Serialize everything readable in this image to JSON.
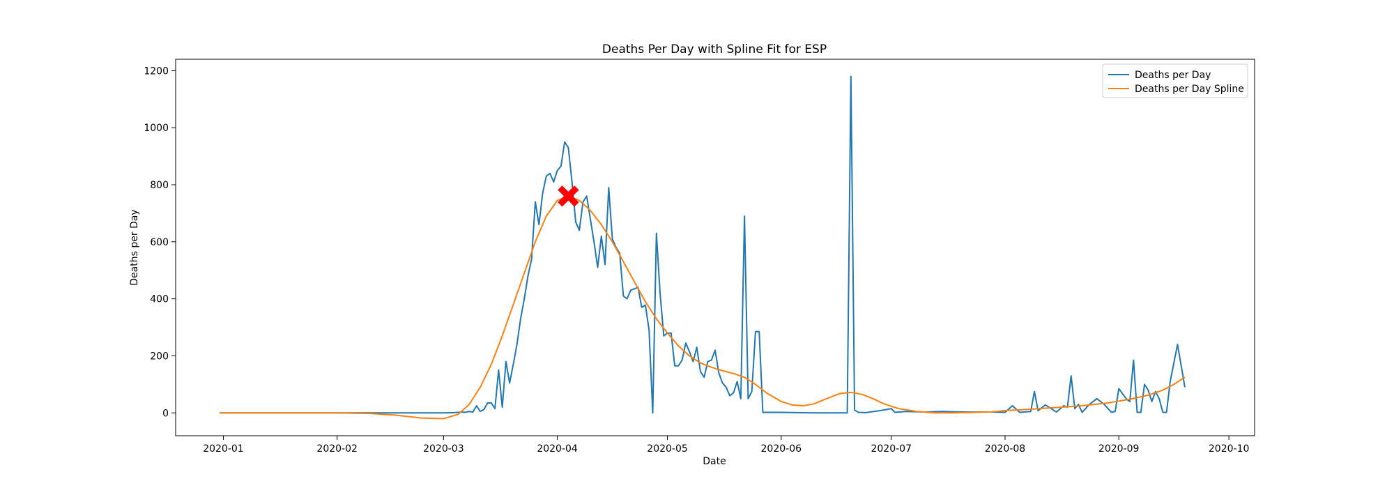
{
  "chart_data": {
    "type": "line",
    "title": "Deaths Per Day with Spline Fit for ESP",
    "xlabel": "Date",
    "ylabel": "Deaths per Day",
    "xlim": [
      "2019-12-19",
      "2020-10-08"
    ],
    "ylim": [
      -80,
      1240
    ],
    "x_ticks": [
      "2020-01-01",
      "2020-02-01",
      "2020-03-01",
      "2020-04-01",
      "2020-05-01",
      "2020-06-01",
      "2020-07-01",
      "2020-08-01",
      "2020-09-01",
      "2020-10-01"
    ],
    "x_tick_labels": [
      "2020-01",
      "2020-02",
      "2020-03",
      "2020-04",
      "2020-05",
      "2020-06",
      "2020-07",
      "2020-08",
      "2020-09",
      "2020-10"
    ],
    "y_ticks": [
      0,
      200,
      400,
      600,
      800,
      1000,
      1200
    ],
    "y_tick_labels": [
      "0",
      "200",
      "400",
      "600",
      "800",
      "1000",
      "1200"
    ],
    "grid": false,
    "legend_position": "top-right",
    "series": [
      {
        "name": "Deaths per Day",
        "color": "#1f77b4",
        "points": [
          [
            "2019-12-31",
            0
          ],
          [
            "2020-01-15",
            0
          ],
          [
            "2020-02-01",
            0
          ],
          [
            "2020-02-15",
            0
          ],
          [
            "2020-03-01",
            0
          ],
          [
            "2020-03-04",
            1
          ],
          [
            "2020-03-05",
            2
          ],
          [
            "2020-03-06",
            3
          ],
          [
            "2020-03-07",
            2
          ],
          [
            "2020-03-08",
            5
          ],
          [
            "2020-03-09",
            3
          ],
          [
            "2020-03-10",
            25
          ],
          [
            "2020-03-11",
            5
          ],
          [
            "2020-03-12",
            12
          ],
          [
            "2020-03-13",
            35
          ],
          [
            "2020-03-14",
            35
          ],
          [
            "2020-03-15",
            15
          ],
          [
            "2020-03-16",
            150
          ],
          [
            "2020-03-17",
            20
          ],
          [
            "2020-03-18",
            180
          ],
          [
            "2020-03-19",
            105
          ],
          [
            "2020-03-20",
            170
          ],
          [
            "2020-03-21",
            240
          ],
          [
            "2020-03-22",
            330
          ],
          [
            "2020-03-23",
            400
          ],
          [
            "2020-03-24",
            480
          ],
          [
            "2020-03-25",
            540
          ],
          [
            "2020-03-26",
            740
          ],
          [
            "2020-03-27",
            660
          ],
          [
            "2020-03-28",
            770
          ],
          [
            "2020-03-29",
            830
          ],
          [
            "2020-03-30",
            840
          ],
          [
            "2020-03-31",
            810
          ],
          [
            "2020-04-01",
            850
          ],
          [
            "2020-04-02",
            865
          ],
          [
            "2020-04-03",
            950
          ],
          [
            "2020-04-04",
            930
          ],
          [
            "2020-04-05",
            810
          ],
          [
            "2020-04-06",
            670
          ],
          [
            "2020-04-07",
            640
          ],
          [
            "2020-04-08",
            740
          ],
          [
            "2020-04-09",
            760
          ],
          [
            "2020-04-10",
            680
          ],
          [
            "2020-04-11",
            600
          ],
          [
            "2020-04-12",
            510
          ],
          [
            "2020-04-13",
            620
          ],
          [
            "2020-04-14",
            520
          ],
          [
            "2020-04-15",
            790
          ],
          [
            "2020-04-16",
            610
          ],
          [
            "2020-04-17",
            580
          ],
          [
            "2020-04-18",
            560
          ],
          [
            "2020-04-19",
            410
          ],
          [
            "2020-04-20",
            400
          ],
          [
            "2020-04-21",
            430
          ],
          [
            "2020-04-22",
            435
          ],
          [
            "2020-04-23",
            440
          ],
          [
            "2020-04-24",
            370
          ],
          [
            "2020-04-25",
            378
          ],
          [
            "2020-04-26",
            290
          ],
          [
            "2020-04-27",
            0
          ],
          [
            "2020-04-28",
            630
          ],
          [
            "2020-04-29",
            420
          ],
          [
            "2020-04-30",
            270
          ],
          [
            "2020-05-01",
            280
          ],
          [
            "2020-05-02",
            280
          ],
          [
            "2020-05-03",
            165
          ],
          [
            "2020-05-04",
            165
          ],
          [
            "2020-05-05",
            185
          ],
          [
            "2020-05-06",
            245
          ],
          [
            "2020-05-07",
            215
          ],
          [
            "2020-05-08",
            180
          ],
          [
            "2020-05-09",
            230
          ],
          [
            "2020-05-10",
            145
          ],
          [
            "2020-05-11",
            125
          ],
          [
            "2020-05-12",
            180
          ],
          [
            "2020-05-13",
            185
          ],
          [
            "2020-05-14",
            220
          ],
          [
            "2020-05-15",
            140
          ],
          [
            "2020-05-16",
            105
          ],
          [
            "2020-05-17",
            90
          ],
          [
            "2020-05-18",
            60
          ],
          [
            "2020-05-19",
            70
          ],
          [
            "2020-05-20",
            110
          ],
          [
            "2020-05-21",
            50
          ],
          [
            "2020-05-22",
            690
          ],
          [
            "2020-05-23",
            50
          ],
          [
            "2020-05-24",
            75
          ],
          [
            "2020-05-25",
            285
          ],
          [
            "2020-05-26",
            285
          ],
          [
            "2020-05-27",
            2
          ],
          [
            "2020-06-01",
            2
          ],
          [
            "2020-06-05",
            1
          ],
          [
            "2020-06-10",
            0
          ],
          [
            "2020-06-19",
            0
          ],
          [
            "2020-06-20",
            1180
          ],
          [
            "2020-06-21",
            10
          ],
          [
            "2020-06-22",
            2
          ],
          [
            "2020-06-24",
            1
          ],
          [
            "2020-06-28",
            8
          ],
          [
            "2020-07-01",
            15
          ],
          [
            "2020-07-02",
            2
          ],
          [
            "2020-07-05",
            5
          ],
          [
            "2020-07-10",
            3
          ],
          [
            "2020-07-15",
            5
          ],
          [
            "2020-07-20",
            3
          ],
          [
            "2020-07-25",
            3
          ],
          [
            "2020-07-28",
            3
          ],
          [
            "2020-08-01",
            2
          ],
          [
            "2020-08-03",
            25
          ],
          [
            "2020-08-05",
            2
          ],
          [
            "2020-08-08",
            5
          ],
          [
            "2020-08-09",
            75
          ],
          [
            "2020-08-10",
            8
          ],
          [
            "2020-08-12",
            28
          ],
          [
            "2020-08-15",
            3
          ],
          [
            "2020-08-17",
            25
          ],
          [
            "2020-08-18",
            20
          ],
          [
            "2020-08-19",
            130
          ],
          [
            "2020-08-20",
            15
          ],
          [
            "2020-08-21",
            30
          ],
          [
            "2020-08-22",
            2
          ],
          [
            "2020-08-24",
            30
          ],
          [
            "2020-08-26",
            50
          ],
          [
            "2020-08-28",
            30
          ],
          [
            "2020-08-30",
            2
          ],
          [
            "2020-08-31",
            5
          ],
          [
            "2020-09-01",
            85
          ],
          [
            "2020-09-03",
            50
          ],
          [
            "2020-09-04",
            40
          ],
          [
            "2020-09-05",
            185
          ],
          [
            "2020-09-06",
            2
          ],
          [
            "2020-09-07",
            2
          ],
          [
            "2020-09-08",
            100
          ],
          [
            "2020-09-09",
            80
          ],
          [
            "2020-09-10",
            40
          ],
          [
            "2020-09-11",
            75
          ],
          [
            "2020-09-12",
            50
          ],
          [
            "2020-09-13",
            2
          ],
          [
            "2020-09-14",
            2
          ],
          [
            "2020-09-15",
            110
          ],
          [
            "2020-09-17",
            240
          ],
          [
            "2020-09-19",
            90
          ]
        ]
      },
      {
        "name": "Deaths per Day Spline",
        "color": "#ff7f0e",
        "points": [
          [
            "2019-12-31",
            0
          ],
          [
            "2020-01-15",
            0
          ],
          [
            "2020-02-01",
            0
          ],
          [
            "2020-02-10",
            -2
          ],
          [
            "2020-02-17",
            -8
          ],
          [
            "2020-02-24",
            -18
          ],
          [
            "2020-03-01",
            -20
          ],
          [
            "2020-03-05",
            -5
          ],
          [
            "2020-03-08",
            30
          ],
          [
            "2020-03-11",
            90
          ],
          [
            "2020-03-14",
            170
          ],
          [
            "2020-03-17",
            270
          ],
          [
            "2020-03-20",
            380
          ],
          [
            "2020-03-23",
            490
          ],
          [
            "2020-03-26",
            600
          ],
          [
            "2020-03-29",
            690
          ],
          [
            "2020-04-01",
            745
          ],
          [
            "2020-04-04",
            760
          ],
          [
            "2020-04-07",
            745
          ],
          [
            "2020-04-10",
            710
          ],
          [
            "2020-04-13",
            660
          ],
          [
            "2020-04-16",
            600
          ],
          [
            "2020-04-19",
            530
          ],
          [
            "2020-04-22",
            460
          ],
          [
            "2020-04-25",
            390
          ],
          [
            "2020-04-28",
            330
          ],
          [
            "2020-05-01",
            280
          ],
          [
            "2020-05-04",
            235
          ],
          [
            "2020-05-07",
            200
          ],
          [
            "2020-05-10",
            175
          ],
          [
            "2020-05-13",
            160
          ],
          [
            "2020-05-16",
            148
          ],
          [
            "2020-05-19",
            138
          ],
          [
            "2020-05-22",
            125
          ],
          [
            "2020-05-25",
            100
          ],
          [
            "2020-05-28",
            70
          ],
          [
            "2020-06-01",
            40
          ],
          [
            "2020-06-04",
            28
          ],
          [
            "2020-06-07",
            25
          ],
          [
            "2020-06-10",
            32
          ],
          [
            "2020-06-13",
            48
          ],
          [
            "2020-06-17",
            68
          ],
          [
            "2020-06-20",
            72
          ],
          [
            "2020-06-23",
            65
          ],
          [
            "2020-06-26",
            50
          ],
          [
            "2020-06-29",
            32
          ],
          [
            "2020-07-03",
            15
          ],
          [
            "2020-07-08",
            5
          ],
          [
            "2020-07-13",
            0
          ],
          [
            "2020-07-18",
            0
          ],
          [
            "2020-07-23",
            2
          ],
          [
            "2020-07-28",
            3
          ],
          [
            "2020-08-01",
            8
          ],
          [
            "2020-08-08",
            13
          ],
          [
            "2020-08-15",
            19
          ],
          [
            "2020-08-22",
            25
          ],
          [
            "2020-08-29",
            35
          ],
          [
            "2020-09-04",
            48
          ],
          [
            "2020-09-09",
            62
          ],
          [
            "2020-09-13",
            80
          ],
          [
            "2020-09-16",
            100
          ],
          [
            "2020-09-19",
            125
          ]
        ]
      }
    ],
    "marker": {
      "shape": "X",
      "color": "#ff0000",
      "x": "2020-04-04",
      "y": 760
    }
  }
}
